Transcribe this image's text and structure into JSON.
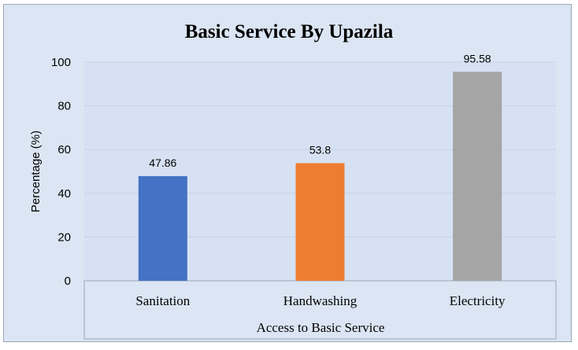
{
  "chart_data": {
    "type": "bar",
    "title": "Basic Service By Upazila",
    "xlabel": "Access to Basic Service",
    "ylabel": "Percentage (%)",
    "categories": [
      "Sanitation",
      "Handwashing",
      "Electricity"
    ],
    "values": [
      47.86,
      53.8,
      95.58
    ],
    "data_labels": [
      "47.86",
      "53.8",
      "95.58"
    ],
    "colors": [
      "#4472c4",
      "#ed7d31",
      "#a5a5a5"
    ],
    "ylim": [
      0,
      100
    ],
    "yticks": [
      "0",
      "20",
      "40",
      "60",
      "80",
      "100"
    ],
    "grid": true,
    "legend": "none"
  },
  "style": {
    "background": "#dbe5f3",
    "plot_background": "#d6e1f3",
    "gridline": "#c7d2e4"
  }
}
